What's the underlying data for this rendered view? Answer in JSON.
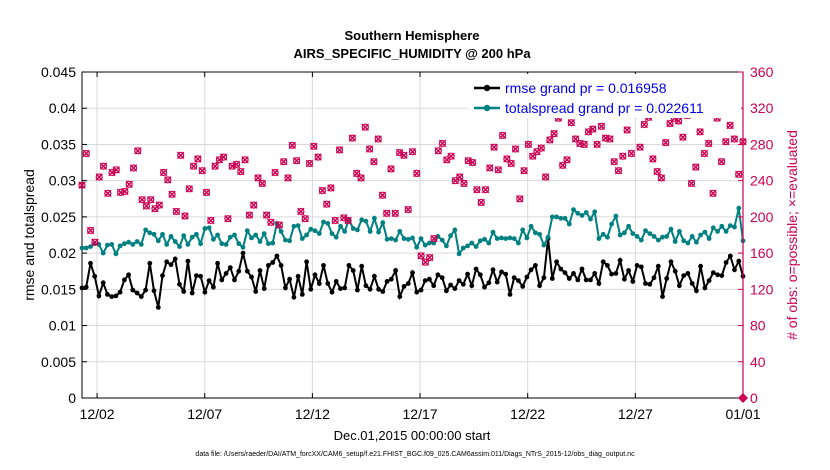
{
  "chart_data": {
    "type": "line",
    "title": "Southern Hemisphere",
    "subtitle": "AIRS_SPECIFIC_HUMIDITY @ 200 hPa",
    "xlabel": "Dec.01,2015 00:00:00 start",
    "ylabel_left": "rmse and totalspread",
    "ylabel_right": "# of obs: o=possible; ×=evaluated",
    "x_ticks": [
      "12/02",
      "12/07",
      "12/12",
      "12/17",
      "12/22",
      "12/27",
      "01/01"
    ],
    "x_tick_days": [
      1,
      6,
      11,
      16,
      21,
      26,
      31
    ],
    "xlim_days": [
      0.3,
      31
    ],
    "ylim_left": [
      0,
      0.045
    ],
    "yticks_left": [
      "0",
      "0.005",
      "0.01",
      "0.015",
      "0.02",
      "0.025",
      "0.03",
      "0.035",
      "0.04",
      "0.045"
    ],
    "ylim_right": [
      0,
      360
    ],
    "yticks_right": [
      "0",
      "40",
      "80",
      "120",
      "160",
      "200",
      "240",
      "280",
      "320",
      "360"
    ],
    "grid": true,
    "legend_position": "top-right",
    "series": [
      {
        "name": "rmse grand pr = 0.016958",
        "color": "#000000",
        "axis": "left",
        "values": [
          0.0152,
          0.0153,
          0.0186,
          0.0168,
          0.0141,
          0.0159,
          0.0143,
          0.014,
          0.0141,
          0.0146,
          0.0163,
          0.017,
          0.0149,
          0.0145,
          0.014,
          0.0149,
          0.0186,
          0.0148,
          0.0125,
          0.0169,
          0.0188,
          0.0184,
          0.0192,
          0.0157,
          0.0147,
          0.0189,
          0.0145,
          0.0169,
          0.0168,
          0.0146,
          0.0162,
          0.0153,
          0.0186,
          0.0163,
          0.0172,
          0.018,
          0.0163,
          0.0175,
          0.02,
          0.0175,
          0.0167,
          0.0147,
          0.0176,
          0.0151,
          0.0183,
          0.0187,
          0.0196,
          0.0183,
          0.0152,
          0.0164,
          0.0139,
          0.0168,
          0.0143,
          0.0188,
          0.015,
          0.017,
          0.0158,
          0.0183,
          0.0158,
          0.0146,
          0.0161,
          0.0151,
          0.0152,
          0.0183,
          0.0176,
          0.0149,
          0.0182,
          0.0155,
          0.015,
          0.0168,
          0.015,
          0.0147,
          0.0161,
          0.0164,
          0.0176,
          0.014,
          0.0154,
          0.0158,
          0.0173,
          0.0146,
          0.0149,
          0.0162,
          0.0164,
          0.0155,
          0.017,
          0.0166,
          0.0148,
          0.0156,
          0.0151,
          0.0162,
          0.0157,
          0.0171,
          0.0155,
          0.0178,
          0.017,
          0.0153,
          0.0159,
          0.0177,
          0.016,
          0.0174,
          0.0171,
          0.0143,
          0.0166,
          0.0162,
          0.0154,
          0.0167,
          0.0177,
          0.0183,
          0.0155,
          0.0166,
          0.022,
          0.0165,
          0.0188,
          0.0178,
          0.0173,
          0.0165,
          0.0172,
          0.0163,
          0.0178,
          0.0163,
          0.0163,
          0.0172,
          0.0158,
          0.0188,
          0.0183,
          0.0171,
          0.0172,
          0.019,
          0.0164,
          0.0176,
          0.0161,
          0.0183,
          0.0181,
          0.0158,
          0.0157,
          0.0166,
          0.0182,
          0.014,
          0.0165,
          0.0188,
          0.0175,
          0.0155,
          0.0169,
          0.0172,
          0.0158,
          0.0148,
          0.0182,
          0.0152,
          0.0162,
          0.0173,
          0.017,
          0.0169,
          0.0187,
          0.0196,
          0.0177,
          0.0189,
          0.0168
        ]
      },
      {
        "name": "totalspread grand pr = 0.022611",
        "color": "#008080",
        "axis": "left",
        "values": [
          0.0207,
          0.0207,
          0.0209,
          0.0213,
          0.0212,
          0.02,
          0.0211,
          0.0212,
          0.0199,
          0.021,
          0.0213,
          0.0215,
          0.0212,
          0.0216,
          0.0212,
          0.0232,
          0.0228,
          0.0226,
          0.0217,
          0.0226,
          0.0212,
          0.0223,
          0.0216,
          0.0209,
          0.0224,
          0.0212,
          0.0222,
          0.0226,
          0.0213,
          0.0234,
          0.0235,
          0.0219,
          0.0225,
          0.0213,
          0.0212,
          0.0222,
          0.0225,
          0.0213,
          0.0208,
          0.0231,
          0.0221,
          0.0225,
          0.0216,
          0.0227,
          0.0213,
          0.0214,
          0.0241,
          0.023,
          0.0218,
          0.0217,
          0.0237,
          0.0238,
          0.022,
          0.0225,
          0.0233,
          0.0231,
          0.0227,
          0.0243,
          0.0241,
          0.0227,
          0.0222,
          0.0237,
          0.023,
          0.0246,
          0.0234,
          0.0232,
          0.0246,
          0.0244,
          0.023,
          0.0248,
          0.0229,
          0.0242,
          0.0219,
          0.022,
          0.0218,
          0.023,
          0.022,
          0.0219,
          0.0221,
          0.0208,
          0.022,
          0.0211,
          0.0214,
          0.0214,
          0.0223,
          0.0218,
          0.021,
          0.0224,
          0.0232,
          0.0199,
          0.0207,
          0.021,
          0.0214,
          0.0209,
          0.0217,
          0.0219,
          0.0214,
          0.0229,
          0.022,
          0.0221,
          0.022,
          0.0221,
          0.022,
          0.0214,
          0.0232,
          0.0221,
          0.0237,
          0.0228,
          0.0226,
          0.0211,
          0.0222,
          0.025,
          0.025,
          0.0248,
          0.0248,
          0.024,
          0.026,
          0.0255,
          0.0252,
          0.0256,
          0.0247,
          0.0257,
          0.022,
          0.0226,
          0.0222,
          0.024,
          0.0251,
          0.0225,
          0.0228,
          0.0237,
          0.0227,
          0.0223,
          0.0218,
          0.0231,
          0.0227,
          0.0223,
          0.0218,
          0.0222,
          0.0223,
          0.0233,
          0.0216,
          0.023,
          0.0217,
          0.0214,
          0.0223,
          0.0215,
          0.0225,
          0.0229,
          0.022,
          0.0235,
          0.023,
          0.0237,
          0.023,
          0.0238,
          0.0236,
          0.0262,
          0.0217
        ]
      },
      {
        "name": "# of obs possible",
        "color": "#cc0052",
        "axis": "right",
        "marker": "o",
        "values": [
          235,
          270,
          185,
          172,
          244,
          256,
          226,
          249,
          252,
          227,
          228,
          236,
          254,
          273,
          219,
          212,
          219,
          209,
          213,
          249,
          241,
          225,
          206,
          268,
          201,
          231,
          256,
          264,
          251,
          227,
          196,
          256,
          263,
          266,
          198,
          256,
          258,
          250,
          263,
          202,
          213,
          243,
          237,
          202,
          194,
          249,
          191,
          261,
          243,
          279,
          262,
          206,
          198,
          259,
          278,
          266,
          229,
          214,
          232,
          196,
          274,
          199,
          196,
          287,
          248,
          243,
          299,
          275,
          261,
          286,
          224,
          204,
          253,
          204,
          271,
          268,
          208,
          272,
          248,
          157,
          150,
          155,
          176,
          273,
          281,
          263,
          267,
          240,
          244,
          237,
          262,
          260,
          230,
          216,
          230,
          254,
          277,
          252,
          290,
          264,
          259,
          275,
          220,
          251,
          280,
          267,
          272,
          276,
          244,
          285,
          292,
          309,
          257,
          263,
          304,
          286,
          281,
          280,
          294,
          297,
          280,
          300,
          287,
          286,
          261,
          251,
          267,
          296,
          270,
          313,
          277,
          302,
          310,
          264,
          250,
          243,
          282,
          303,
          309,
          306,
          288,
          312,
          237,
          255,
          294,
          270,
          281,
          226,
          309,
          261,
          283,
          301,
          286,
          247,
          283
        ]
      },
      {
        "name": "# of obs evaluated",
        "color": "#cc0052",
        "axis": "right",
        "marker": "x",
        "values": [
          235,
          270,
          185,
          172,
          244,
          256,
          226,
          249,
          252,
          227,
          228,
          236,
          254,
          273,
          219,
          212,
          219,
          209,
          213,
          249,
          241,
          225,
          206,
          268,
          201,
          231,
          256,
          264,
          251,
          227,
          196,
          256,
          263,
          266,
          198,
          256,
          258,
          250,
          263,
          202,
          213,
          243,
          237,
          202,
          194,
          249,
          191,
          261,
          243,
          279,
          262,
          206,
          198,
          259,
          278,
          266,
          229,
          214,
          232,
          196,
          274,
          199,
          196,
          287,
          248,
          243,
          299,
          275,
          261,
          286,
          224,
          204,
          253,
          204,
          271,
          268,
          208,
          272,
          248,
          157,
          150,
          155,
          176,
          273,
          281,
          263,
          267,
          240,
          244,
          237,
          262,
          260,
          230,
          216,
          230,
          254,
          277,
          252,
          290,
          264,
          259,
          275,
          220,
          251,
          280,
          267,
          272,
          276,
          244,
          285,
          292,
          309,
          257,
          263,
          304,
          286,
          281,
          280,
          294,
          297,
          280,
          300,
          287,
          286,
          261,
          251,
          267,
          296,
          270,
          313,
          277,
          302,
          310,
          264,
          250,
          243,
          282,
          303,
          309,
          306,
          288,
          312,
          237,
          255,
          294,
          270,
          281,
          226,
          309,
          261,
          283,
          301,
          286,
          247,
          283
        ]
      }
    ],
    "footer": "data file: /Users/raeder/DAI/ATM_forcXX/CAM6_setup/f.e21.FHIST_BGC.f09_025.CAM6assim.011/Diags_NTrS_2015-12/obs_diag_output.nc",
    "last_point_right": 0
  }
}
